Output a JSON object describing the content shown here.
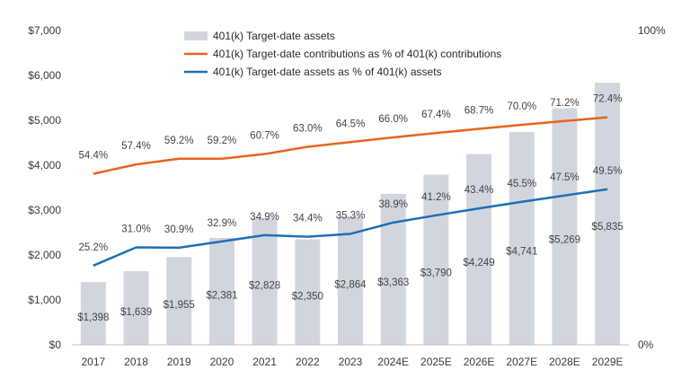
{
  "chart_data": {
    "type": "bar",
    "categories": [
      "2017",
      "2018",
      "2019",
      "2020",
      "2021",
      "2022",
      "2023",
      "2024E",
      "2025E",
      "2026E",
      "2027E",
      "2028E",
      "2029E"
    ],
    "y_left": {
      "range": [
        0,
        7000
      ],
      "ticks": [
        "$0",
        "$1,000",
        "$2,000",
        "$3,000",
        "$4,000",
        "$5,000",
        "$6,000",
        "$7,000"
      ]
    },
    "y_right": {
      "range": [
        0,
        100
      ],
      "ticks": [
        "0%",
        "100%"
      ]
    },
    "grid": false,
    "legend_position": "top",
    "series": [
      {
        "name": "401(k) Target-date assets",
        "type": "bar",
        "axis": "left",
        "color": "#d1d6de",
        "values": [
          1398,
          1639,
          1955,
          2381,
          2828,
          2350,
          2864,
          3363,
          3790,
          4249,
          4741,
          5269,
          5835
        ],
        "labels": [
          "$1,398",
          "$1,639",
          "$1,955",
          "$2,381",
          "$2,828",
          "$2,350",
          "$2,864",
          "$3,363",
          "$3,790",
          "$4,249",
          "$4,741",
          "$5,269",
          "$5,835"
        ]
      },
      {
        "name": "401(k) Target-date contributions as % of 401(k) contributions",
        "type": "line",
        "axis": "right",
        "color": "#e8641e",
        "values": [
          54.4,
          57.4,
          59.2,
          59.2,
          60.7,
          63.0,
          64.5,
          66.0,
          67.4,
          68.7,
          70.0,
          71.2,
          72.4
        ],
        "labels": [
          "54.4%",
          "57.4%",
          "59.2%",
          "59.2%",
          "60.7%",
          "63.0%",
          "64.5%",
          "66.0%",
          "67.4%",
          "68.7%",
          "70.0%",
          "71.2%",
          "72.4%"
        ]
      },
      {
        "name": "401(k) Target-date assets as % of 401(k) assets",
        "type": "line",
        "axis": "right",
        "color": "#1e6fb5",
        "values": [
          25.2,
          31.0,
          30.9,
          32.9,
          34.9,
          34.4,
          35.3,
          38.9,
          41.2,
          43.4,
          45.5,
          47.5,
          49.5
        ],
        "labels": [
          "25.2%",
          "31.0%",
          "30.9%",
          "32.9%",
          "34.9%",
          "34.4%",
          "35.3%",
          "38.9%",
          "41.2%",
          "43.4%",
          "45.5%",
          "47.5%",
          "49.5%"
        ]
      }
    ]
  }
}
